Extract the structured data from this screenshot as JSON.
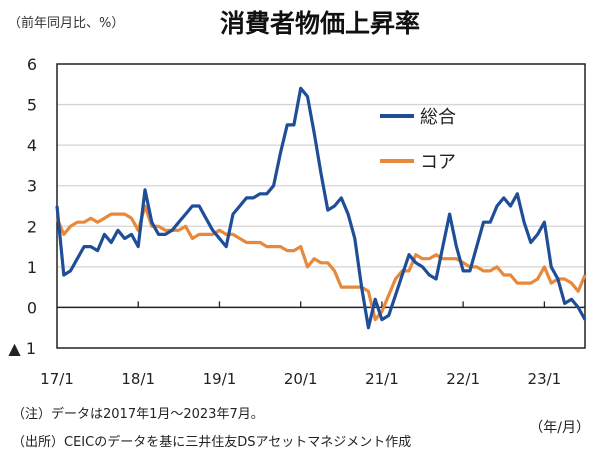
{
  "chart_data": {
    "type": "line",
    "title": "消費者物価上昇率",
    "ylabel": "（前年同月比、%）",
    "xlabel": "（年/月）",
    "ylim": [
      -1,
      6
    ],
    "yticks": [
      6,
      5,
      4,
      3,
      2,
      1,
      0,
      -1
    ],
    "ytick_labels": [
      "6",
      "5",
      "4",
      "3",
      "2",
      "1",
      "0",
      "▲ 1"
    ],
    "x_start": "2017-01",
    "x_end": "2023-07",
    "xtick_labels": [
      "17/1",
      "18/1",
      "19/1",
      "20/1",
      "21/1",
      "22/1",
      "23/1"
    ],
    "grid": true,
    "legend_position": "top-right",
    "series": [
      {
        "name": "総合",
        "color": "#1f4e99",
        "values": [
          2.5,
          0.8,
          0.9,
          1.2,
          1.5,
          1.5,
          1.4,
          1.8,
          1.6,
          1.9,
          1.7,
          1.8,
          1.5,
          2.9,
          2.1,
          1.8,
          1.8,
          1.9,
          2.1,
          2.3,
          2.5,
          2.5,
          2.2,
          1.9,
          1.7,
          1.5,
          2.3,
          2.5,
          2.7,
          2.7,
          2.8,
          2.8,
          3.0,
          3.8,
          4.5,
          4.5,
          5.4,
          5.2,
          4.3,
          3.3,
          2.4,
          2.5,
          2.7,
          2.3,
          1.7,
          0.5,
          -0.5,
          0.2,
          -0.3,
          -0.2,
          0.3,
          0.8,
          1.3,
          1.1,
          1.0,
          0.8,
          0.7,
          1.5,
          2.3,
          1.5,
          0.9,
          0.9,
          1.5,
          2.1,
          2.1,
          2.5,
          2.7,
          2.5,
          2.8,
          2.1,
          1.6,
          1.8,
          2.1,
          1.0,
          0.7,
          0.1,
          0.2,
          0.0,
          -0.3
        ]
      },
      {
        "name": "コア",
        "color": "#e8883a",
        "values": [
          2.2,
          1.8,
          2.0,
          2.1,
          2.1,
          2.2,
          2.1,
          2.2,
          2.3,
          2.3,
          2.3,
          2.2,
          1.9,
          2.5,
          2.0,
          2.0,
          1.9,
          1.9,
          1.9,
          2.0,
          1.7,
          1.8,
          1.8,
          1.8,
          1.9,
          1.8,
          1.8,
          1.7,
          1.6,
          1.6,
          1.6,
          1.5,
          1.5,
          1.5,
          1.4,
          1.4,
          1.5,
          1.0,
          1.2,
          1.1,
          1.1,
          0.9,
          0.5,
          0.5,
          0.5,
          0.5,
          0.4,
          -0.3,
          -0.1,
          0.3,
          0.7,
          0.9,
          0.9,
          1.3,
          1.2,
          1.2,
          1.3,
          1.2,
          1.2,
          1.2,
          1.1,
          1.0,
          1.0,
          0.9,
          0.9,
          1.0,
          0.8,
          0.8,
          0.6,
          0.6,
          0.6,
          0.7,
          1.0,
          0.6,
          0.7,
          0.7,
          0.6,
          0.4,
          0.8
        ]
      }
    ]
  },
  "notes": [
    "（注）データは2017年1月～2023年7月。",
    "（出所）CEICのデータを基に三井住友DSアセットマネジメント作成"
  ]
}
